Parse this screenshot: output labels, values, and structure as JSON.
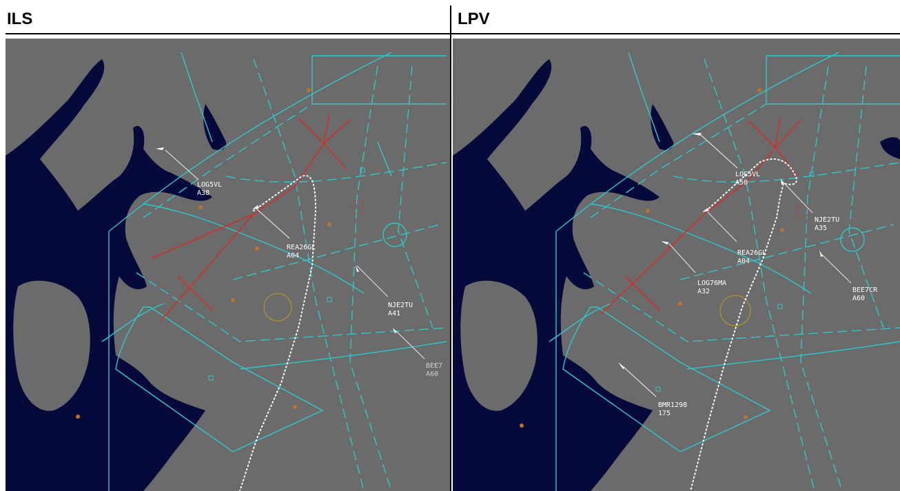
{
  "panels": {
    "left": {
      "title": "ILS",
      "targets": [
        {
          "callsign": "LOG5VL",
          "alt": "A38"
        },
        {
          "callsign": "REA26GL",
          "alt": "A04"
        },
        {
          "callsign": "NJE2TU",
          "alt": "A41"
        },
        {
          "callsign": "BEE7",
          "alt": "A60"
        }
      ]
    },
    "right": {
      "title": "LPV",
      "targets": [
        {
          "callsign": "LOG5VL",
          "alt": "A50"
        },
        {
          "callsign": "NJE2TU",
          "alt": "A35"
        },
        {
          "callsign": "REA26GL",
          "alt": "A04"
        },
        {
          "callsign": "LOG76MA",
          "alt": "A32"
        },
        {
          "callsign": "BEE7CR",
          "alt": "A60"
        },
        {
          "callsign": "BMR1298",
          "alt": "175"
        }
      ]
    }
  },
  "colors": {
    "background": "#6b6b6b",
    "water": "#050a3a",
    "airspace": "#2ec9cc",
    "approach": "#d0302a",
    "track": "#ffffff"
  }
}
